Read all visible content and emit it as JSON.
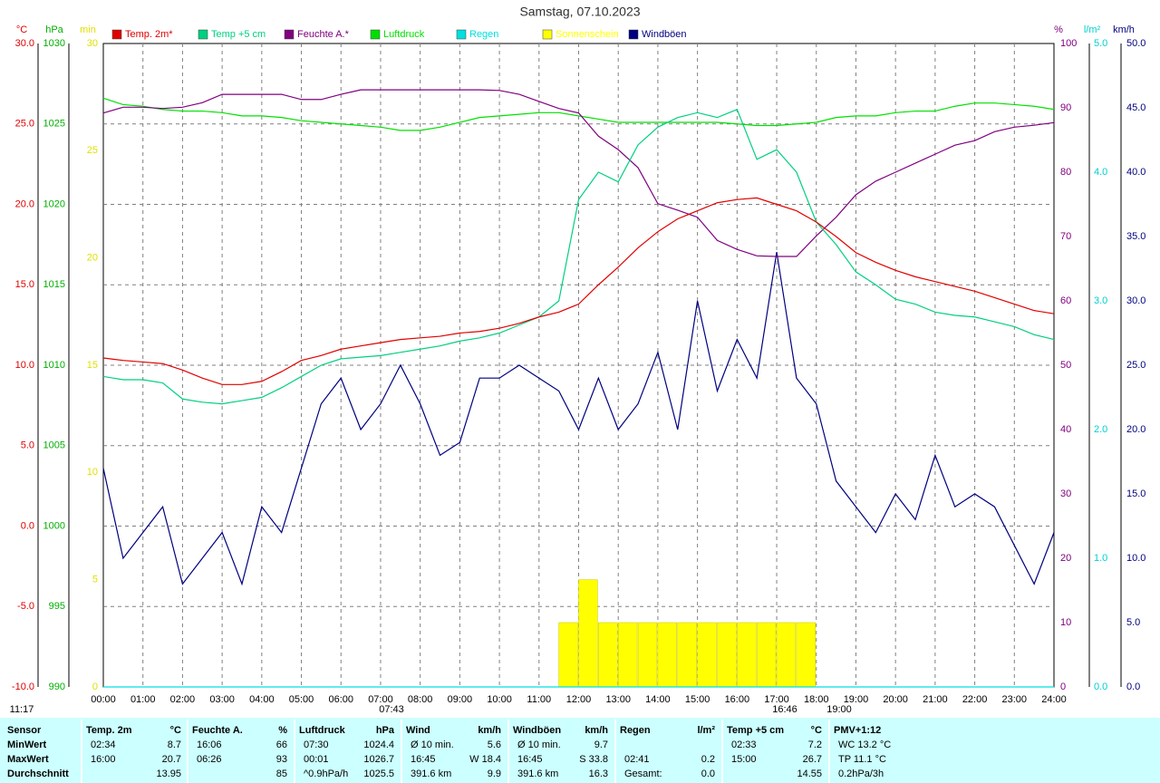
{
  "chart_data": {
    "type": "line",
    "title": "Samstag, 07.10.2023",
    "xlim": [
      0,
      24
    ],
    "xticks": [
      {
        "value": 0,
        "label": "00:00"
      },
      {
        "value": 1,
        "label": "01:00"
      },
      {
        "value": 2,
        "label": "02:00"
      },
      {
        "value": 3,
        "label": "03:00"
      },
      {
        "value": 4,
        "label": "04:00"
      },
      {
        "value": 5,
        "label": "05:00"
      },
      {
        "value": 6,
        "label": "06:00"
      },
      {
        "value": 7,
        "label": "07:00"
      },
      {
        "value": 8,
        "label": "08:00"
      },
      {
        "value": 9,
        "label": "09:00"
      },
      {
        "value": 10,
        "label": "10:00"
      },
      {
        "value": 11,
        "label": "11:00"
      },
      {
        "value": 12,
        "label": "12:00"
      },
      {
        "value": 13,
        "label": "13:00"
      },
      {
        "value": 14,
        "label": "14:00"
      },
      {
        "value": 15,
        "label": "15:00"
      },
      {
        "value": 16,
        "label": "16:00"
      },
      {
        "value": 17,
        "label": "17:00"
      },
      {
        "value": 18,
        "label": "18:00"
      },
      {
        "value": 19,
        "label": "19:00"
      },
      {
        "value": 20,
        "label": "20:00"
      },
      {
        "value": 21,
        "label": "21:00"
      },
      {
        "value": 22,
        "label": "22:00"
      },
      {
        "value": 23,
        "label": "23:00"
      },
      {
        "value": 24,
        "label": "24:00"
      }
    ],
    "grid": true,
    "axes": {
      "temp": {
        "label": "°C",
        "color": "#e00000",
        "lim": [
          -10,
          30
        ],
        "grid": true,
        "ticks": [
          {
            "value": 30,
            "label": "30.0"
          },
          {
            "value": 25,
            "label": "25.0"
          },
          {
            "value": 20,
            "label": "20.0"
          },
          {
            "value": 15,
            "label": "15.0"
          },
          {
            "value": 10,
            "label": "10.0"
          },
          {
            "value": 5,
            "label": "5.0"
          },
          {
            "value": 0,
            "label": "0.0"
          },
          {
            "value": -5,
            "label": "-5.0"
          },
          {
            "value": -10,
            "label": "-10.0"
          }
        ]
      },
      "press": {
        "label": "hPa",
        "color": "#00b000",
        "lim": [
          990,
          1030
        ],
        "ticks": [
          1030,
          1025,
          1020,
          1015,
          1010,
          1005,
          1000,
          995,
          990
        ]
      },
      "sun": {
        "label": "min",
        "color": "#e0e000",
        "lim": [
          0,
          30
        ],
        "ticks": [
          30,
          25,
          20,
          15,
          10,
          5,
          0
        ]
      },
      "hum": {
        "label": "%",
        "color": "#800080",
        "lim": [
          0,
          100
        ],
        "ticks": [
          100,
          90,
          80,
          70,
          60,
          50,
          40,
          30,
          20,
          10,
          0
        ]
      },
      "rain": {
        "label": "l/m²",
        "color": "#00d0d0",
        "lim": [
          0,
          5
        ],
        "ticks": [
          {
            "value": 5,
            "label": "5.0"
          },
          {
            "value": 4,
            "label": "4.0"
          },
          {
            "value": 3,
            "label": "3.0"
          },
          {
            "value": 2,
            "label": "2.0"
          },
          {
            "value": 1,
            "label": "1.0"
          },
          {
            "value": 0,
            "label": "0.0"
          }
        ]
      },
      "wind": {
        "label": "km/h",
        "color": "#000080",
        "lim": [
          0,
          50
        ],
        "ticks": [
          {
            "value": 50,
            "label": "50.0"
          },
          {
            "value": 45,
            "label": "45.0"
          },
          {
            "value": 40,
            "label": "40.0"
          },
          {
            "value": 35,
            "label": "35.0"
          },
          {
            "value": 30,
            "label": "30.0"
          },
          {
            "value": 25,
            "label": "25.0"
          },
          {
            "value": 20,
            "label": "20.0"
          },
          {
            "value": 15,
            "label": "15.0"
          },
          {
            "value": 10,
            "label": "10.0"
          },
          {
            "value": 5,
            "label": "5.0"
          },
          {
            "value": 0,
            "label": "0.0"
          }
        ]
      }
    },
    "x": [
      0,
      0.5,
      1,
      1.5,
      2,
      2.5,
      3,
      3.5,
      4,
      4.5,
      5,
      5.5,
      6,
      6.5,
      7,
      7.5,
      8,
      8.5,
      9,
      9.5,
      10,
      10.5,
      11,
      11.5,
      12,
      12.5,
      13,
      13.5,
      14,
      14.5,
      15,
      15.5,
      16,
      16.5,
      17,
      17.5,
      18,
      18.5,
      19,
      19.5,
      20,
      20.5,
      21,
      21.5,
      22,
      22.5,
      23,
      23.5,
      24
    ],
    "series": [
      {
        "name": "Sonnenschein",
        "color": "#ffff00",
        "axis": "sun",
        "type": "bar",
        "values": [
          0,
          0,
          0,
          0,
          0,
          0,
          0,
          0,
          0,
          0,
          0,
          0,
          0,
          0,
          0,
          0,
          0,
          0,
          0,
          0,
          0,
          0,
          0,
          3,
          5,
          3,
          3,
          3,
          3,
          3,
          3,
          3,
          3,
          3,
          3,
          3,
          0,
          0,
          0,
          0,
          0,
          0,
          0,
          0,
          0,
          0,
          0,
          0,
          0
        ]
      },
      {
        "name": "Regen",
        "color": "#00e0e0",
        "axis": "rain",
        "values": [
          0,
          0,
          0,
          0,
          0,
          0,
          0,
          0,
          0,
          0,
          0,
          0,
          0,
          0,
          0,
          0,
          0,
          0,
          0,
          0,
          0,
          0,
          0,
          0,
          0,
          0,
          0,
          0,
          0,
          0,
          0,
          0,
          0,
          0,
          0,
          0,
          0,
          0,
          0,
          0,
          0,
          0,
          0,
          0,
          0,
          0,
          0,
          0,
          0
        ]
      },
      {
        "name": "Windböen",
        "color": "#000080",
        "axis": "wind",
        "values": [
          17,
          10,
          12,
          14,
          8,
          10,
          12,
          8,
          14,
          12,
          17,
          22,
          24,
          20,
          22,
          25,
          22,
          18,
          19,
          24,
          24,
          25,
          24,
          23,
          20,
          24,
          20,
          22,
          26,
          20,
          30,
          23,
          27,
          24,
          33.8,
          24,
          22,
          16,
          14,
          12,
          15,
          13,
          18,
          14,
          15,
          14,
          11,
          8,
          12
        ]
      },
      {
        "name": "Luftdruck",
        "color": "#00e000",
        "axis": "press",
        "values": [
          1026.6,
          1026.2,
          1026.1,
          1025.9,
          1025.8,
          1025.8,
          1025.7,
          1025.5,
          1025.5,
          1025.4,
          1025.2,
          1025.1,
          1025.0,
          1024.9,
          1024.8,
          1024.6,
          1024.6,
          1024.8,
          1025.1,
          1025.4,
          1025.5,
          1025.6,
          1025.7,
          1025.7,
          1025.5,
          1025.3,
          1025.1,
          1025.1,
          1025.1,
          1025.1,
          1025.1,
          1025.1,
          1025.0,
          1024.9,
          1024.9,
          1025.0,
          1025.1,
          1025.4,
          1025.5,
          1025.5,
          1025.7,
          1025.8,
          1025.8,
          1026.1,
          1026.3,
          1026.3,
          1026.2,
          1026.1,
          1025.9
        ]
      },
      {
        "name": "Feuchte A.*",
        "color": "#800080",
        "axis": "hum",
        "values": [
          89.2,
          90.1,
          90.1,
          89.9,
          90.1,
          90.8,
          92.1,
          92.1,
          92.1,
          92.1,
          91.3,
          91.3,
          92.1,
          92.8,
          92.8,
          92.8,
          92.8,
          92.8,
          92.8,
          92.8,
          92.7,
          92.1,
          91.0,
          89.9,
          89.2,
          85.6,
          83.5,
          80.7,
          75.1,
          74.1,
          73.0,
          69.4,
          68.0,
          67.0,
          66.9,
          66.9,
          70.1,
          73.0,
          76.5,
          78.6,
          80.0,
          81.4,
          82.8,
          84.2,
          84.9,
          86.3,
          87.0,
          87.3,
          87.7
        ]
      },
      {
        "name": "Temp +5 cm",
        "color": "#00d080",
        "axis": "temp",
        "values": [
          9.3,
          9.1,
          9.1,
          8.9,
          7.9,
          7.7,
          7.6,
          7.8,
          8.0,
          8.6,
          9.3,
          10.0,
          10.4,
          10.5,
          10.6,
          10.8,
          11.0,
          11.2,
          11.5,
          11.7,
          12.0,
          12.5,
          13.0,
          14.0,
          20.3,
          22.0,
          21.4,
          23.7,
          24.8,
          25.4,
          25.7,
          25.4,
          25.9,
          22.8,
          23.4,
          22.0,
          18.9,
          17.5,
          15.8,
          15.0,
          14.1,
          13.8,
          13.3,
          13.1,
          13.0,
          12.7,
          12.4,
          11.9,
          11.6
        ]
      },
      {
        "name": "Temp. 2m*",
        "color": "#e00000",
        "axis": "temp",
        "values": [
          10.45,
          10.3,
          10.2,
          10.1,
          9.7,
          9.2,
          8.8,
          8.8,
          9.0,
          9.6,
          10.3,
          10.6,
          11.0,
          11.2,
          11.4,
          11.6,
          11.7,
          11.8,
          12.0,
          12.1,
          12.3,
          12.6,
          13.0,
          13.3,
          13.8,
          15.0,
          16.1,
          17.3,
          18.3,
          19.1,
          19.6,
          20.1,
          20.3,
          20.4,
          20.0,
          19.6,
          18.9,
          18.0,
          17.0,
          16.4,
          15.9,
          15.5,
          15.2,
          14.9,
          14.6,
          14.2,
          13.8,
          13.4,
          13.2
        ]
      }
    ],
    "legend_order": [
      "Temp. 2m*",
      "Temp +5 cm",
      "Feuchte A.*",
      "Luftdruck",
      "Regen",
      "Sonnenschein",
      "Windböen"
    ],
    "annotations": [
      "11:17",
      "07:43",
      "16:46",
      "19:00"
    ]
  },
  "table": {
    "row_labels": [
      "Sensor",
      "MinWert",
      "MaxWert",
      "Durchschnitt"
    ],
    "columns": [
      {
        "title": "Temp. 2m",
        "unit": "°C",
        "rows": [
          {
            "time": "02:34",
            "value": "8.7"
          },
          {
            "time": "16:00",
            "value": "20.7"
          },
          {
            "value": "13.95"
          }
        ]
      },
      {
        "title": "Feuchte A.",
        "unit": "%",
        "rows": [
          {
            "time": "16:06",
            "value": "66"
          },
          {
            "time": "06:26",
            "value": "93"
          },
          {
            "value": "85"
          }
        ]
      },
      {
        "title": "Luftdruck",
        "unit": "hPa",
        "rows": [
          {
            "time": "07:30",
            "value": "1024.4"
          },
          {
            "time": "00:01",
            "value": "1026.7"
          },
          {
            "time": "^0.9hPa/h",
            "value": "1025.5"
          }
        ]
      },
      {
        "title": "Wind",
        "unit": "km/h",
        "rows": [
          {
            "time": "Ø 10 min.",
            "value": "5.6"
          },
          {
            "time": "16:45",
            "value": "W 18.4"
          },
          {
            "time": "391.6 km",
            "value": "9.9"
          }
        ]
      },
      {
        "title": "Windböen",
        "unit": "km/h",
        "rows": [
          {
            "time": "Ø 10 min.",
            "value": "9.7"
          },
          {
            "time": "16:45",
            "value": "S 33.8"
          },
          {
            "time": "391.6 km",
            "value": "16.3"
          }
        ]
      },
      {
        "title": "Regen",
        "unit": "l/m²",
        "rows": [
          null,
          {
            "time": "02:41",
            "value": "0.2"
          },
          {
            "time": "Gesamt:",
            "value": "0.0"
          }
        ]
      },
      {
        "title": "Temp +5 cm",
        "unit": "°C",
        "rows": [
          {
            "time": "02:33",
            "value": "7.2"
          },
          {
            "time": "15:00",
            "value": "26.7"
          },
          {
            "value": "14.55"
          }
        ]
      },
      {
        "title": "PMV+1:12",
        "rows": [
          {
            "time": "WC 13.2 °C"
          },
          {
            "time": "TP 11.1 °C"
          },
          {
            "time": "0.2hPa/3h"
          }
        ]
      }
    ]
  }
}
